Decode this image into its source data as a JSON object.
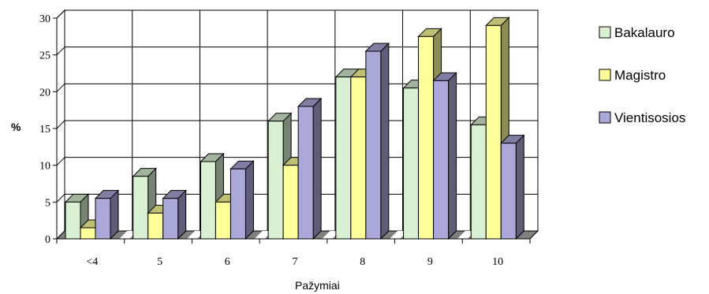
{
  "chart_data": {
    "type": "bar",
    "categories": [
      "<4",
      "5",
      "6",
      "7",
      "8",
      "9",
      "10"
    ],
    "series": [
      {
        "name": "Bakalauro",
        "values": [
          5,
          8.5,
          10.5,
          16,
          22,
          20.5,
          15.5
        ],
        "color": "#d9f0d3"
      },
      {
        "name": "Magistro",
        "values": [
          1.5,
          3.5,
          5,
          10,
          22,
          27.5,
          29
        ],
        "color": "#ffff99"
      },
      {
        "name": "Vientisosios",
        "values": [
          5.5,
          5.5,
          9.5,
          18,
          25.5,
          21.5,
          13
        ],
        "color": "#aaa8d8"
      }
    ],
    "yticks": [
      0,
      5,
      10,
      15,
      20,
      25,
      30
    ],
    "ylim": [
      0,
      30
    ],
    "xlabel": "Pažymiai",
    "ylabel": "%",
    "grid": true,
    "legend": "right"
  }
}
